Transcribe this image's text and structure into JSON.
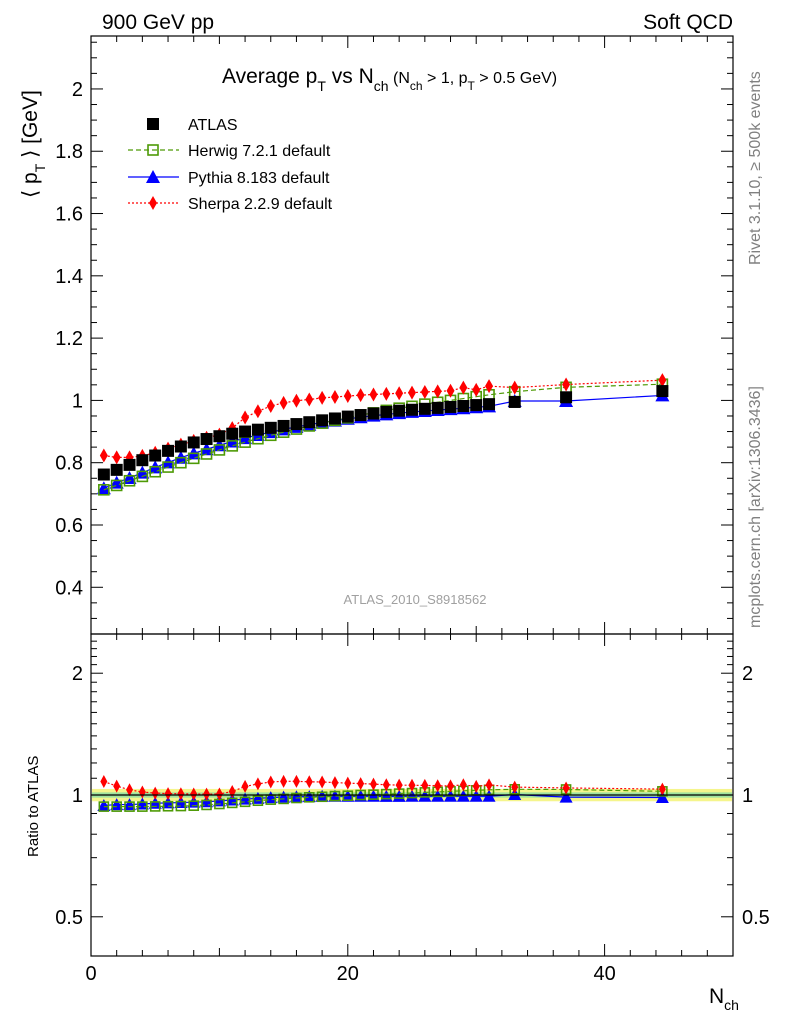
{
  "header": {
    "left": "900 GeV pp",
    "right": "Soft QCD"
  },
  "side": {
    "rivet": "Rivet 3.1.10, ≥ 500k events",
    "mcplots": "mcplots.cern.ch [arXiv:1306.3436]"
  },
  "chart_data": {
    "type": "scatter",
    "title": "Average pT vs Nch (Nch > 1, pT > 0.5 GeV)",
    "title_parts": {
      "main": "Average p",
      "main_sub": "T",
      "mid": " vs N",
      "mid_sub": "ch",
      "paren_open": " (N",
      "paren_sub1": "ch",
      "paren_mid": " > 1, p",
      "paren_sub2": "T",
      "paren_close": " > 0.5 GeV)"
    },
    "ylabel": "⟨ pT ⟩ [GeV]",
    "ylabel_parts": {
      "open": "⟨ p",
      "sub": "T",
      "close": " ⟩  [GeV]"
    },
    "ratio_ylabel": "Ratio to ATLAS",
    "xlabel": "Nch",
    "xlabel_parts": {
      "main": "N",
      "sub": "ch"
    },
    "watermark": "ATLAS_2010_S8918562",
    "xlim": [
      0,
      50
    ],
    "ylim": [
      0.25,
      2.17
    ],
    "ratio_ylim": [
      0.4,
      2.5
    ],
    "x_ticks": [
      0,
      20,
      40
    ],
    "x_tick_labels": [
      "0",
      "20",
      "40"
    ],
    "y_ticks": [
      0.4,
      0.6,
      0.8,
      1,
      1.2,
      1.4,
      1.6,
      1.8,
      2
    ],
    "y_tick_labels": [
      "0.4",
      "0.6",
      "0.8",
      "1",
      "1.2",
      "1.4",
      "1.6",
      "1.8",
      "2"
    ],
    "ratio_ticks": [
      0.5,
      1,
      2
    ],
    "ratio_tick_labels": [
      "0.5",
      "1",
      "2"
    ],
    "legend_position": "top-left",
    "x": [
      1,
      2,
      3,
      4,
      5,
      6,
      7,
      8,
      9,
      10,
      11,
      12,
      13,
      14,
      15,
      16,
      17,
      18,
      19,
      20,
      21,
      22,
      23,
      24,
      25,
      26,
      27,
      28,
      29,
      30,
      31,
      33,
      37,
      44.5
    ],
    "series": [
      {
        "name": "ATLAS",
        "style": "data",
        "color": "#000000",
        "marker": "square-filled",
        "values": [
          0.762,
          0.777,
          0.793,
          0.808,
          0.823,
          0.838,
          0.852,
          0.865,
          0.876,
          0.885,
          0.893,
          0.9,
          0.906,
          0.912,
          0.918,
          0.924,
          0.93,
          0.936,
          0.942,
          0.948,
          0.953,
          0.958,
          0.963,
          0.967,
          0.97,
          0.973,
          0.976,
          0.979,
          0.982,
          0.985,
          0.988,
          0.995,
          1.01,
          1.03
        ],
        "ratio": [
          1,
          1,
          1,
          1,
          1,
          1,
          1,
          1,
          1,
          1,
          1,
          1,
          1,
          1,
          1,
          1,
          1,
          1,
          1,
          1,
          1,
          1,
          1,
          1,
          1,
          1,
          1,
          1,
          1,
          1,
          1,
          1,
          1,
          1
        ]
      },
      {
        "name": "Herwig 7.2.1 default",
        "style": "dashed",
        "color": "#4e9a06",
        "marker": "square-open",
        "values": [
          0.713,
          0.727,
          0.742,
          0.756,
          0.771,
          0.786,
          0.8,
          0.814,
          0.828,
          0.841,
          0.854,
          0.866,
          0.877,
          0.888,
          0.898,
          0.908,
          0.918,
          0.927,
          0.936,
          0.944,
          0.953,
          0.96,
          0.968,
          0.975,
          0.981,
          0.988,
          0.994,
          1.0,
          1.006,
          1.012,
          1.018,
          1.028,
          1.042,
          1.052
        ],
        "ratio": [
          0.936,
          0.936,
          0.936,
          0.936,
          0.937,
          0.938,
          0.939,
          0.941,
          0.945,
          0.95,
          0.956,
          0.962,
          0.968,
          0.974,
          0.978,
          0.983,
          0.987,
          0.99,
          0.994,
          0.996,
          1.0,
          1.002,
          1.005,
          1.008,
          1.011,
          1.015,
          1.018,
          1.021,
          1.024,
          1.027,
          1.03,
          1.033,
          1.032,
          1.021
        ]
      },
      {
        "name": "Pythia 8.183 default",
        "style": "solid",
        "color": "#0000ff",
        "marker": "triangle-filled",
        "values": [
          0.718,
          0.736,
          0.751,
          0.768,
          0.785,
          0.801,
          0.816,
          0.83,
          0.843,
          0.856,
          0.868,
          0.879,
          0.889,
          0.898,
          0.907,
          0.915,
          0.922,
          0.929,
          0.935,
          0.941,
          0.946,
          0.951,
          0.955,
          0.959,
          0.963,
          0.966,
          0.969,
          0.972,
          0.975,
          0.978,
          0.981,
          0.998,
          0.998,
          1.016
        ],
        "ratio": [
          0.942,
          0.947,
          0.947,
          0.95,
          0.954,
          0.956,
          0.958,
          0.96,
          0.962,
          0.967,
          0.972,
          0.977,
          0.981,
          0.985,
          0.988,
          0.99,
          0.991,
          0.993,
          0.993,
          0.993,
          0.993,
          0.993,
          0.992,
          0.992,
          0.993,
          0.993,
          0.993,
          0.993,
          0.993,
          0.993,
          0.993,
          1.003,
          0.988,
          0.986
        ]
      },
      {
        "name": "Sherpa 2.2.9 default",
        "style": "dotted",
        "color": "#ff0000",
        "marker": "diamond-filled",
        "values": [
          0.823,
          0.817,
          0.817,
          0.822,
          0.832,
          0.845,
          0.858,
          0.87,
          0.88,
          0.89,
          0.911,
          0.945,
          0.965,
          0.982,
          0.992,
          0.999,
          1.003,
          1.008,
          1.011,
          1.014,
          1.017,
          1.019,
          1.021,
          1.023,
          1.025,
          1.027,
          1.029,
          1.031,
          1.041,
          1.034,
          1.046,
          1.041,
          1.051,
          1.065
        ],
        "ratio": [
          1.08,
          1.052,
          1.03,
          1.017,
          1.011,
          1.008,
          1.007,
          1.006,
          1.005,
          1.006,
          1.02,
          1.05,
          1.065,
          1.077,
          1.081,
          1.081,
          1.078,
          1.077,
          1.073,
          1.07,
          1.067,
          1.064,
          1.06,
          1.058,
          1.057,
          1.056,
          1.054,
          1.053,
          1.06,
          1.05,
          1.059,
          1.046,
          1.041,
          1.034
        ]
      }
    ],
    "data_band": {
      "inner": [
        0.985,
        1.015
      ],
      "outer": [
        0.965,
        1.035
      ]
    }
  }
}
